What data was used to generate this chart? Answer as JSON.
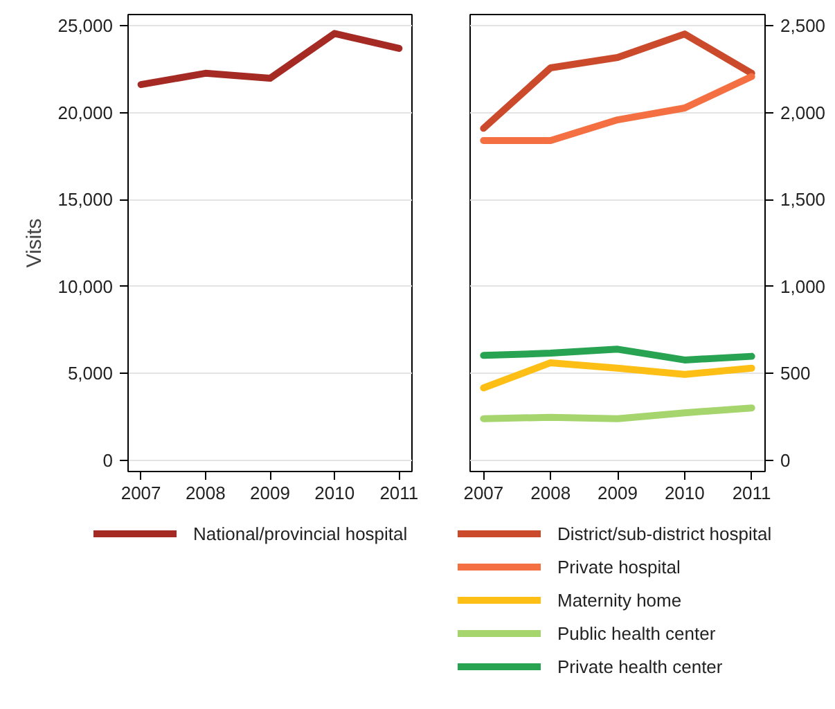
{
  "chart_data": [
    {
      "type": "line",
      "ylabel": "Visits",
      "x": [
        2007,
        2008,
        2009,
        2010,
        2011
      ],
      "xlim": [
        2006.8,
        2011.2
      ],
      "xticks": [
        2007,
        2008,
        2009,
        2010,
        2011
      ],
      "ylim": [
        -650,
        25650
      ],
      "yticks": [
        0,
        {
          "value": 5000,
          "label": "5,000"
        },
        {
          "value": 10000,
          "label": "10,000"
        },
        {
          "value": 15000,
          "label": "15,000"
        },
        {
          "value": 20000,
          "label": "20,000"
        },
        {
          "value": 25000,
          "label": "25,000"
        }
      ],
      "grid": "y",
      "legend": "bottom",
      "line_style": "solid",
      "marker": "none",
      "series": [
        {
          "name": "National/provincial hospital",
          "color": "#a52a24",
          "values": [
            21620,
            22270,
            21980,
            24560,
            23700
          ]
        }
      ]
    },
    {
      "type": "line",
      "x": [
        2007,
        2008,
        2009,
        2010,
        2011
      ],
      "xlim": [
        2006.8,
        2011.2
      ],
      "xticks": [
        2007,
        2008,
        2009,
        2010,
        2011
      ],
      "ylim": [
        -65,
        2565
      ],
      "yticks": [
        0,
        500,
        {
          "value": 1000,
          "label": "1,000"
        },
        {
          "value": 1500,
          "label": "1,500"
        },
        {
          "value": 2000,
          "label": "2,000"
        },
        {
          "value": 2500,
          "label": "2,500"
        }
      ],
      "grid": "y",
      "legend": "bottom",
      "line_style": "solid",
      "marker": "none",
      "series": [
        {
          "name": "District/sub-district hospital",
          "color": "#cc4a2c",
          "values": [
            1910,
            2258,
            2318,
            2453,
            2227
          ]
        },
        {
          "name": "Private hospital",
          "color": "#f46f41",
          "values": [
            1840,
            1840,
            1959,
            2027,
            2208
          ]
        },
        {
          "name": "Maternity home",
          "color": "#fdbf16",
          "values": [
            416,
            561,
            530,
            494,
            530
          ]
        },
        {
          "name": "Public health center",
          "color": "#a6d56e",
          "values": [
            239,
            247,
            239,
            273,
            301
          ]
        },
        {
          "name": "Private health center",
          "color": "#27a352",
          "values": [
            603,
            616,
            639,
            577,
            598
          ]
        }
      ]
    }
  ]
}
